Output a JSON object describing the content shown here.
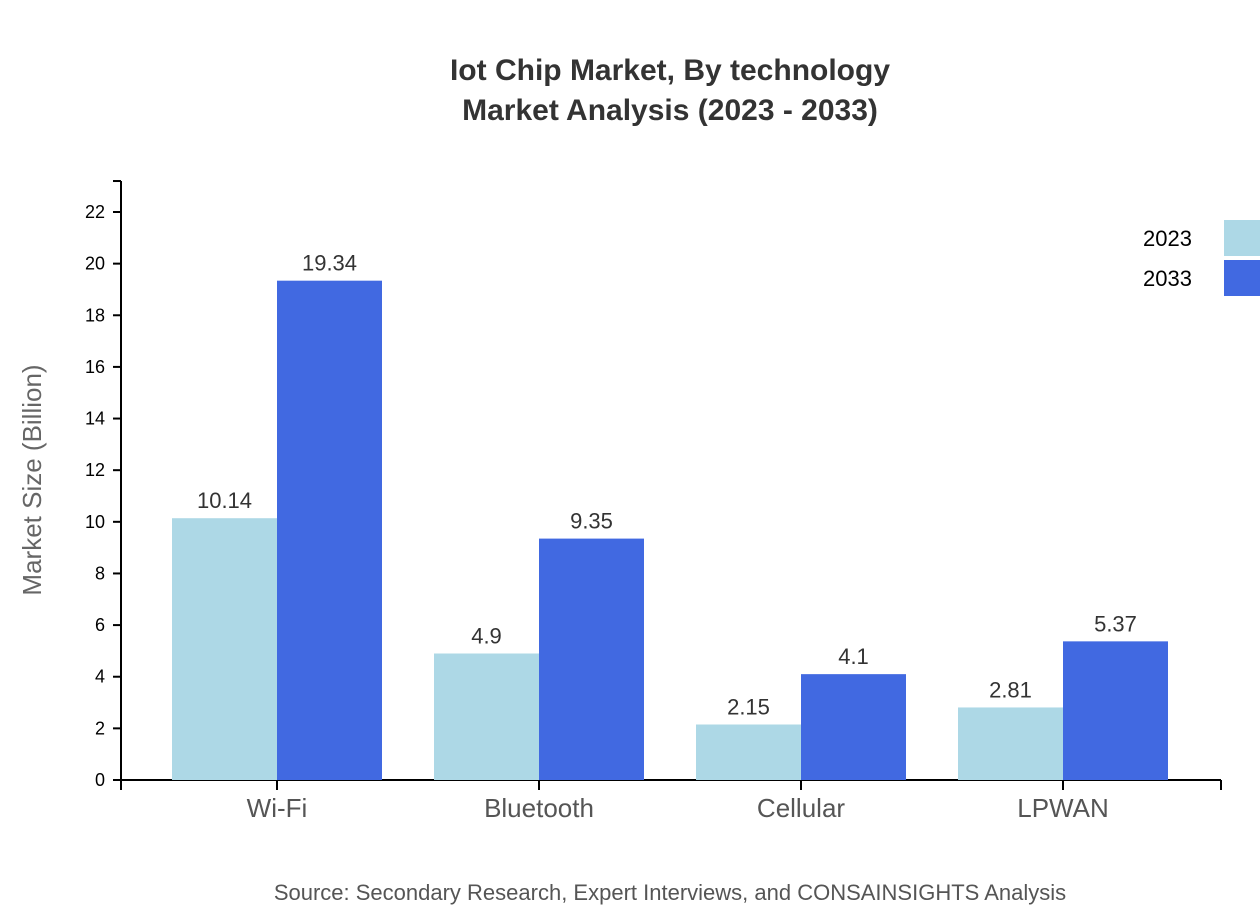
{
  "chart_data": {
    "type": "bar",
    "title": "Iot Chip Market, By technology",
    "subtitle": "Market Analysis (2023 - 2033)",
    "xlabel": "",
    "ylabel": "Market Size (Billion)",
    "categories": [
      "Wi-Fi",
      "Bluetooth",
      "Cellular",
      "LPWAN"
    ],
    "series": [
      {
        "name": "2023",
        "color": "#ADD8E6",
        "values": [
          10.14,
          4.9,
          2.15,
          2.81
        ]
      },
      {
        "name": "2033",
        "color": "#4169E1",
        "values": [
          19.34,
          9.35,
          4.1,
          5.37
        ]
      }
    ],
    "ylim": [
      0,
      23.2
    ],
    "yticks": [
      0,
      2,
      4,
      6,
      8,
      10,
      12,
      14,
      16,
      18,
      20,
      22
    ],
    "grid": false,
    "legend": "top-right",
    "source": "Source: Secondary Research, Expert Interviews, and CONSAINSIGHTS Analysis"
  }
}
